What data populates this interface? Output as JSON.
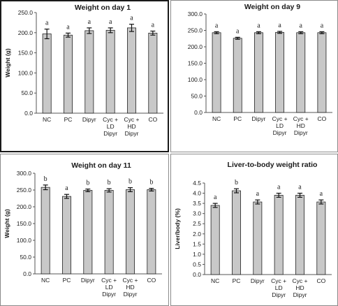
{
  "chart_data": [
    {
      "type": "bar",
      "title": "Weight on day 1",
      "ylabel": "Weight (g)",
      "categories": [
        [
          "NC"
        ],
        [
          "PC"
        ],
        [
          "Dipyr"
        ],
        [
          "Cyc +",
          "LD",
          "Dipyr"
        ],
        [
          "Cyc +",
          "HD",
          "Dipyr"
        ],
        [
          "CO"
        ]
      ],
      "values": [
        197,
        194,
        205,
        206,
        212,
        199
      ],
      "errors": [
        12,
        5,
        7,
        6,
        9,
        5
      ],
      "significance": [
        "a",
        "a",
        "a",
        "a",
        "a",
        "a"
      ],
      "ylim": [
        0,
        250
      ],
      "yticks": [
        "0.0",
        "50.0",
        "100.0",
        "150.0",
        "200.0",
        "250.0"
      ],
      "grid": false,
      "bar_color": "#c8c8c8"
    },
    {
      "type": "bar",
      "title": "Weight on day 9",
      "ylabel": "",
      "categories": [
        [
          "NC"
        ],
        [
          "PC"
        ],
        [
          "Dipyr"
        ],
        [
          "Cyc +",
          "LD",
          "Dipyr"
        ],
        [
          "Cyc +",
          "HD",
          "Dipyr"
        ],
        [
          "CO"
        ]
      ],
      "values": [
        243,
        226,
        243,
        244,
        243,
        243
      ],
      "errors": [
        3,
        3,
        3,
        3,
        3,
        3
      ],
      "significance": [
        "a",
        "a",
        "a",
        "a",
        "a",
        "a"
      ],
      "ylim": [
        0,
        300
      ],
      "yticks": [
        "0.0",
        "50.0",
        "100.0",
        "150.0",
        "200.0",
        "250.0",
        "300.0"
      ],
      "grid": false,
      "bar_color": "#c8c8c8"
    },
    {
      "type": "bar",
      "title": "Weight on day 11",
      "ylabel": "Weight (g)",
      "categories": [
        [
          "NC"
        ],
        [
          "PC"
        ],
        [
          "Dipyr"
        ],
        [
          "Cyc +",
          "LD",
          "Dipyr"
        ],
        [
          "Cyc +",
          "HD",
          "Dipyr"
        ],
        [
          "CO"
        ]
      ],
      "values": [
        258,
        231,
        249,
        249,
        251,
        251
      ],
      "errors": [
        7,
        6,
        4,
        5,
        6,
        4
      ],
      "significance": [
        "b",
        "a",
        "b",
        "b",
        "b",
        "b"
      ],
      "ylim": [
        0,
        300
      ],
      "yticks": [
        "0.0",
        "50.0",
        "100.0",
        "150.0",
        "200.0",
        "250.0",
        "300.0"
      ],
      "grid": false,
      "bar_color": "#c8c8c8"
    },
    {
      "type": "bar",
      "title": "Liver-to-body weight ratio",
      "ylabel": "Liver/body (%)",
      "categories": [
        [
          "NC"
        ],
        [
          "PC"
        ],
        [
          "Dipyr"
        ],
        [
          "Cyc +",
          "LD",
          "Dipyr"
        ],
        [
          "Cyc +",
          "HD",
          "Dipyr"
        ],
        [
          "CO"
        ]
      ],
      "values": [
        3.4,
        4.12,
        3.57,
        3.9,
        3.9,
        3.57
      ],
      "errors": [
        0.1,
        0.1,
        0.1,
        0.1,
        0.1,
        0.1
      ],
      "significance": [
        "a",
        "b",
        "a",
        "a",
        "a",
        "a"
      ],
      "ylim": [
        0,
        4.5
      ],
      "yticks": [
        "0.0",
        "0.5",
        "1.0",
        "1.5",
        "2.0",
        "2.5",
        "3.0",
        "3.5",
        "4.0",
        "4.5"
      ],
      "grid": false,
      "bar_color": "#c8c8c8"
    }
  ]
}
